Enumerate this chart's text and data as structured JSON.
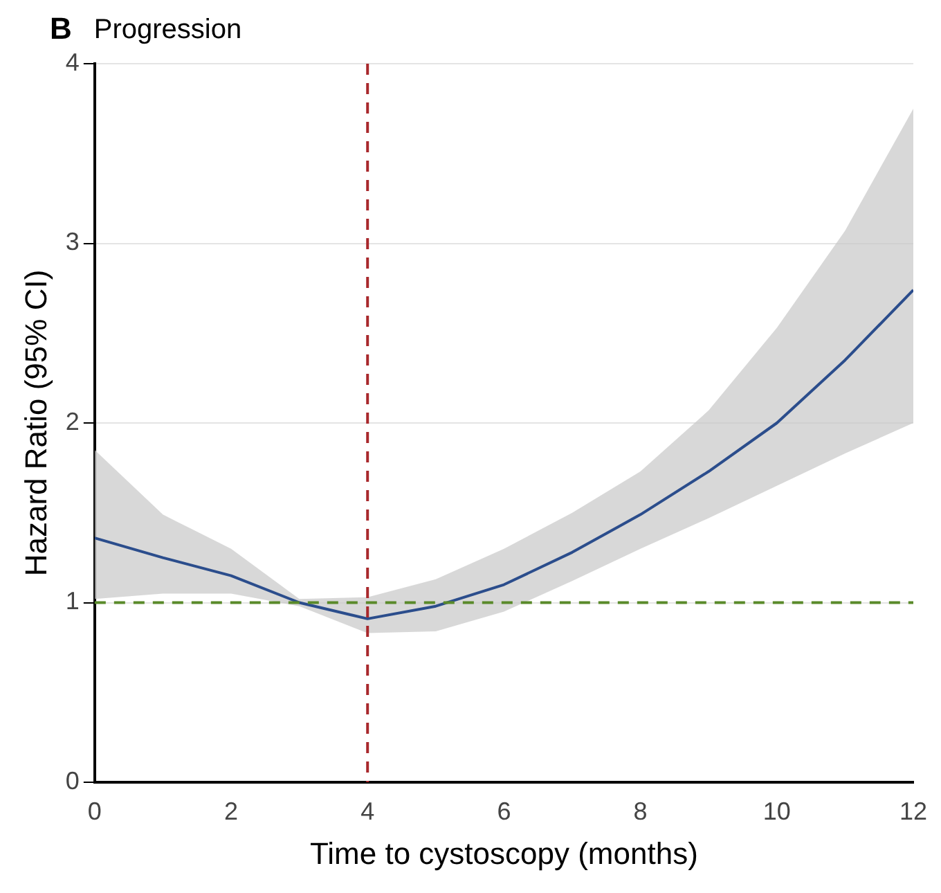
{
  "chart_data": {
    "type": "line",
    "title": "Progression",
    "annotations": [
      "B"
    ],
    "xlabel": "Time to cystoscopy (months)",
    "ylabel": "Hazard Ratio (95% CI)",
    "x": [
      0,
      1,
      2,
      3,
      4,
      5,
      6,
      7,
      8,
      9,
      10,
      11,
      12
    ],
    "series": [
      {
        "color": "#2b4d8c",
        "values": [
          1.36,
          1.25,
          1.15,
          1.0,
          0.91,
          0.98,
          1.1,
          1.28,
          1.49,
          1.73,
          2.0,
          2.35,
          2.74
        ],
        "lower": [
          1.02,
          1.05,
          1.05,
          0.98,
          0.83,
          0.84,
          0.95,
          1.12,
          1.3,
          1.47,
          1.65,
          1.83,
          2.0
        ],
        "upper": [
          1.85,
          1.49,
          1.3,
          1.02,
          1.03,
          1.13,
          1.3,
          1.5,
          1.73,
          2.07,
          2.53,
          3.07,
          3.75
        ]
      }
    ],
    "xlim": [
      0,
      12
    ],
    "xticks": [
      0,
      2,
      4,
      6,
      8,
      10,
      12
    ],
    "ylim": [
      0,
      4
    ],
    "yticks": [
      0,
      1,
      2,
      3,
      4
    ],
    "grid": "y",
    "legend": false,
    "marker": "none",
    "line_style": "solid",
    "ref_lines": [
      {
        "axis": "x",
        "value": 4,
        "color": "#a8282c",
        "line_style": "dashed"
      },
      {
        "axis": "y",
        "value": 1,
        "color": "#5a8a2a",
        "line_style": "dashed"
      }
    ]
  }
}
